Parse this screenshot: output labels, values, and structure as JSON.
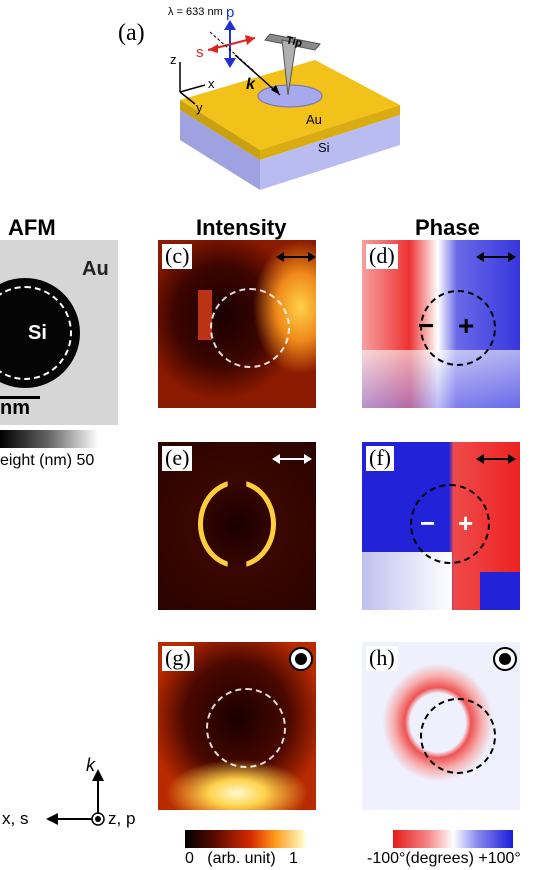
{
  "figure": {
    "schematic": {
      "panel_label": "(a)",
      "wavelength": "λ = 633 nm",
      "p_label": "p",
      "s_label": "s",
      "tip_label": "Tip",
      "k_label": "k",
      "axis_z": "z",
      "axis_x": "x",
      "axis_y": "y",
      "au_label": "Au",
      "si_label": "Si"
    },
    "columns": {
      "afm": "AFM",
      "intensity": "Intensity",
      "phase": "Phase"
    },
    "afm_panel": {
      "au": "Au",
      "si": "Si",
      "scalebar_text": "nm",
      "colorbar_label": "eight (nm)  50"
    },
    "panels": [
      {
        "label": "(c)",
        "polarization": "horizontal-arrow"
      },
      {
        "label": "(d)",
        "polarization": "horizontal-arrow",
        "minus": "−",
        "plus": "+"
      },
      {
        "label": "(e)",
        "polarization": "horizontal-arrow"
      },
      {
        "label": "(f)",
        "polarization": "horizontal-arrow",
        "minus": "−",
        "plus": "+"
      },
      {
        "label": "(g)",
        "polarization": "out-of-plane"
      },
      {
        "label": "(h)",
        "polarization": "out-of-plane"
      }
    ],
    "axes_legend": {
      "k": "k",
      "xs": "x, s",
      "zp": "z, p"
    },
    "colorbars": {
      "intensity": "0   (arb. unit)   1",
      "phase": "-100°(degrees) +100°"
    },
    "colors": {
      "gold": "#f2c21a",
      "si": "#b9bcf0",
      "phase_red": "#e11b1b",
      "phase_blue": "#1b1bd9"
    }
  }
}
